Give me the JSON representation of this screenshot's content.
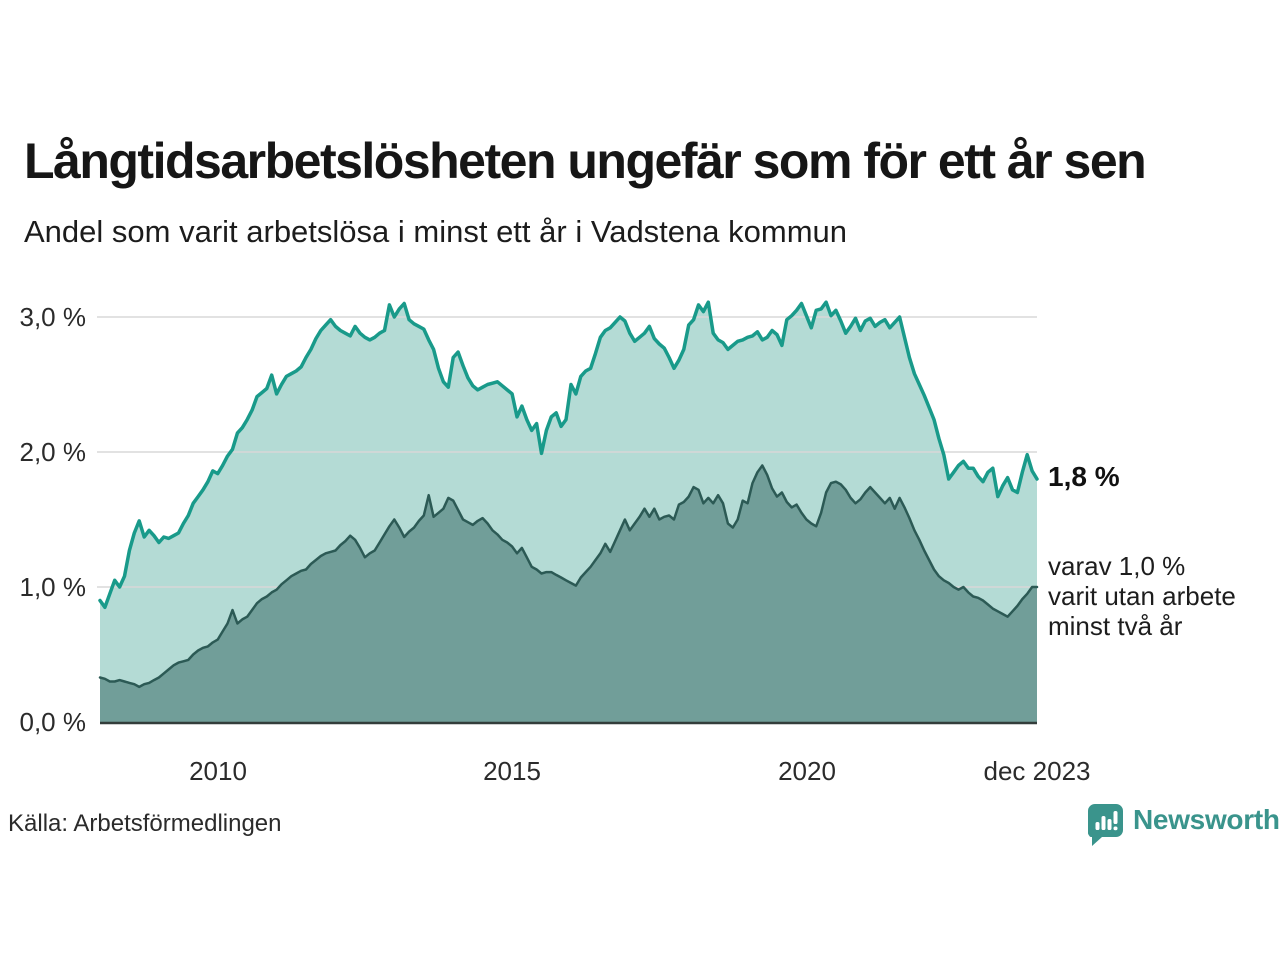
{
  "header": {
    "title": "Långtidsarbetslösheten ungefär som för ett år sen",
    "subtitle": "Andel som varit arbetslösa i minst ett år i Vadstena kommun"
  },
  "annotations": {
    "total_end_value": "1,8 %",
    "two_year_note": "varav 1,0 %\nvarit utan arbete\nminst två år"
  },
  "footer": {
    "source": "Källa: Arbetsförmedlingen",
    "brand": "Newsworthy",
    "brand_icon": "newsworthy-bar-chart-speech-bubble"
  },
  "colors": {
    "total_line": "#199a8a",
    "total_fill": "#b4dbd5",
    "two_year_line": "#2c5a55",
    "two_year_fill": "#719e99",
    "gridline": "#d8d8d8",
    "axis_line": "#333d3b",
    "brand_teal": "#3a948c",
    "text_dark": "#161616"
  },
  "chart_data": {
    "type": "area",
    "title": "Långtidsarbetslösheten ungefär som för ett år sen",
    "subtitle": "Andel som varit arbetslösa i minst ett år i Vadstena kommun",
    "x_unit": "decimal_year",
    "x_start": 2008.0,
    "x_step": 0.0833333,
    "xlim": [
      2008.0,
      2023.9167
    ],
    "ylim": [
      0,
      3.27
    ],
    "grid": true,
    "legend": "end-of-line annotations",
    "y_ticks": [
      {
        "label": "3,0 %",
        "value": 3.0
      },
      {
        "label": "2,0 %",
        "value": 2.0
      },
      {
        "label": "1,0 %",
        "value": 1.0
      },
      {
        "label": "0,0 %",
        "value": 0.0
      }
    ],
    "x_ticks": [
      {
        "label": "2010",
        "value": 2010.0
      },
      {
        "label": "2015",
        "value": 2015.0
      },
      {
        "label": "2020",
        "value": 2020.0
      },
      {
        "label": "dec 2023",
        "value": 2023.9167
      }
    ],
    "series": [
      {
        "name": "Andel arbetslösa minst ett år",
        "end_label": "1,8 %",
        "values": [
          0.9,
          0.85,
          0.95,
          1.05,
          1.0,
          1.08,
          1.27,
          1.4,
          1.49,
          1.37,
          1.42,
          1.38,
          1.33,
          1.37,
          1.36,
          1.38,
          1.4,
          1.47,
          1.53,
          1.62,
          1.67,
          1.72,
          1.78,
          1.86,
          1.84,
          1.9,
          1.97,
          2.02,
          2.14,
          2.18,
          2.24,
          2.31,
          2.41,
          2.44,
          2.47,
          2.57,
          2.43,
          2.5,
          2.56,
          2.58,
          2.6,
          2.63,
          2.7,
          2.76,
          2.84,
          2.9,
          2.94,
          2.98,
          2.93,
          2.9,
          2.88,
          2.86,
          2.93,
          2.88,
          2.85,
          2.83,
          2.85,
          2.88,
          2.9,
          3.09,
          3.0,
          3.06,
          3.1,
          2.98,
          2.95,
          2.93,
          2.91,
          2.83,
          2.76,
          2.62,
          2.52,
          2.48,
          2.7,
          2.74,
          2.64,
          2.55,
          2.49,
          2.46,
          2.48,
          2.5,
          2.51,
          2.52,
          2.49,
          2.46,
          2.43,
          2.26,
          2.34,
          2.24,
          2.16,
          2.21,
          1.99,
          2.16,
          2.26,
          2.29,
          2.19,
          2.24,
          2.5,
          2.43,
          2.56,
          2.6,
          2.62,
          2.73,
          2.85,
          2.9,
          2.92,
          2.96,
          3.0,
          2.97,
          2.88,
          2.82,
          2.85,
          2.88,
          2.93,
          2.84,
          2.8,
          2.77,
          2.7,
          2.62,
          2.68,
          2.76,
          2.94,
          2.98,
          3.09,
          3.04,
          3.11,
          2.88,
          2.83,
          2.81,
          2.76,
          2.79,
          2.82,
          2.83,
          2.85,
          2.86,
          2.89,
          2.83,
          2.85,
          2.9,
          2.87,
          2.79,
          2.98,
          3.01,
          3.05,
          3.1,
          3.01,
          2.92,
          3.05,
          3.06,
          3.11,
          3.01,
          3.05,
          2.97,
          2.88,
          2.93,
          2.99,
          2.9,
          2.97,
          2.99,
          2.93,
          2.96,
          2.98,
          2.92,
          2.96,
          3.0,
          2.85,
          2.7,
          2.58,
          2.5,
          2.42,
          2.33,
          2.24,
          2.1,
          1.98,
          1.8,
          1.85,
          1.9,
          1.93,
          1.88,
          1.88,
          1.82,
          1.78,
          1.85,
          1.88,
          1.67,
          1.75,
          1.81,
          1.72,
          1.7,
          1.85,
          1.98,
          1.86,
          1.8
        ]
      },
      {
        "name": "varav utan arbete minst två år",
        "end_label": "varav 1,0 % varit utan arbete minst två år",
        "values": [
          0.33,
          0.32,
          0.3,
          0.3,
          0.31,
          0.3,
          0.29,
          0.28,
          0.26,
          0.28,
          0.29,
          0.31,
          0.33,
          0.36,
          0.39,
          0.42,
          0.44,
          0.45,
          0.46,
          0.5,
          0.53,
          0.55,
          0.56,
          0.59,
          0.61,
          0.67,
          0.73,
          0.83,
          0.73,
          0.76,
          0.78,
          0.83,
          0.88,
          0.91,
          0.93,
          0.96,
          0.98,
          1.02,
          1.05,
          1.08,
          1.1,
          1.12,
          1.13,
          1.17,
          1.2,
          1.23,
          1.25,
          1.26,
          1.27,
          1.31,
          1.34,
          1.38,
          1.35,
          1.29,
          1.22,
          1.25,
          1.27,
          1.33,
          1.39,
          1.45,
          1.5,
          1.44,
          1.37,
          1.41,
          1.44,
          1.49,
          1.53,
          1.68,
          1.52,
          1.55,
          1.58,
          1.66,
          1.64,
          1.57,
          1.5,
          1.48,
          1.46,
          1.49,
          1.51,
          1.47,
          1.42,
          1.39,
          1.35,
          1.33,
          1.3,
          1.25,
          1.29,
          1.22,
          1.15,
          1.13,
          1.1,
          1.11,
          1.11,
          1.09,
          1.07,
          1.05,
          1.03,
          1.01,
          1.07,
          1.11,
          1.15,
          1.2,
          1.25,
          1.32,
          1.26,
          1.34,
          1.42,
          1.5,
          1.42,
          1.47,
          1.52,
          1.58,
          1.52,
          1.58,
          1.5,
          1.52,
          1.53,
          1.5,
          1.61,
          1.63,
          1.67,
          1.74,
          1.72,
          1.62,
          1.66,
          1.62,
          1.68,
          1.62,
          1.47,
          1.44,
          1.5,
          1.64,
          1.62,
          1.77,
          1.85,
          1.9,
          1.83,
          1.73,
          1.67,
          1.7,
          1.63,
          1.59,
          1.61,
          1.55,
          1.5,
          1.47,
          1.45,
          1.55,
          1.7,
          1.77,
          1.78,
          1.76,
          1.72,
          1.66,
          1.62,
          1.65,
          1.7,
          1.74,
          1.7,
          1.66,
          1.62,
          1.66,
          1.58,
          1.66,
          1.59,
          1.51,
          1.42,
          1.35,
          1.27,
          1.2,
          1.13,
          1.08,
          1.05,
          1.03,
          1.0,
          0.98,
          1.0,
          0.96,
          0.93,
          0.92,
          0.9,
          0.87,
          0.84,
          0.82,
          0.8,
          0.78,
          0.82,
          0.86,
          0.91,
          0.95,
          1.0,
          1.0
        ]
      }
    ]
  }
}
